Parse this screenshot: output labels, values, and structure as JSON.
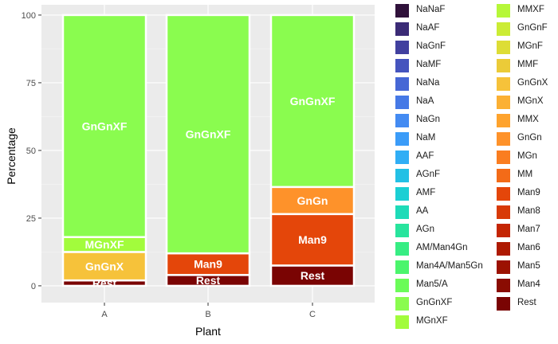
{
  "chart_data": {
    "type": "bar",
    "stacked": true,
    "xlabel": "Plant",
    "ylabel": "Percentage",
    "categories": [
      "A",
      "B",
      "C"
    ],
    "ylim": [
      0,
      100
    ],
    "yticks": [
      0,
      25,
      50,
      75,
      100
    ],
    "grid": true,
    "legend_position": "right",
    "series": [
      {
        "name": "Rest",
        "color": "#7a0403",
        "values": [
          2,
          4,
          7.5
        ],
        "labels": [
          "Rest",
          "Rest",
          "Rest"
        ]
      },
      {
        "name": "Man9",
        "color": "#e4460a",
        "values": [
          0,
          8,
          19
        ],
        "labels": [
          "",
          "Man9",
          "Man9"
        ]
      },
      {
        "name": "GnGn",
        "color": "#fe922a",
        "values": [
          0,
          0,
          10
        ],
        "labels": [
          "",
          "",
          "GnGn"
        ]
      },
      {
        "name": "GnGnX",
        "color": "#f6c23a",
        "values": [
          10.5,
          0,
          0
        ],
        "labels": [
          "GnGnX",
          "",
          ""
        ]
      },
      {
        "name": "MGnXF",
        "color": "#a2fc3c",
        "values": [
          5.5,
          0,
          0
        ],
        "labels": [
          "MGnXF",
          "",
          ""
        ]
      },
      {
        "name": "GnGnXF",
        "color": "#8afc4f",
        "values": [
          82,
          88,
          63.5
        ],
        "labels": [
          "GnGnXF",
          "GnGnXF",
          "GnGnXF"
        ]
      }
    ],
    "legend": [
      {
        "name": "NaNaF",
        "color": "#30123b"
      },
      {
        "name": "NaAF",
        "color": "#3b2b76"
      },
      {
        "name": "NaGnF",
        "color": "#41409f"
      },
      {
        "name": "NaMF",
        "color": "#4554be"
      },
      {
        "name": "NaNa",
        "color": "#4667d5"
      },
      {
        "name": "NaA",
        "color": "#4679e6"
      },
      {
        "name": "NaGn",
        "color": "#448bf2"
      },
      {
        "name": "NaM",
        "color": "#3b9cf8"
      },
      {
        "name": "AAF",
        "color": "#30aef5"
      },
      {
        "name": "AGnF",
        "color": "#23c0e5"
      },
      {
        "name": "AMF",
        "color": "#1bcfd4"
      },
      {
        "name": "AA",
        "color": "#1edbb8"
      },
      {
        "name": "AGn",
        "color": "#28e49d"
      },
      {
        "name": "AM/Man4Gn",
        "color": "#37ed83"
      },
      {
        "name": "Man4A/Man5Gn",
        "color": "#4bf56c"
      },
      {
        "name": "Man5/A",
        "color": "#6bfc58"
      },
      {
        "name": "GnGnXF",
        "color": "#8afc4f"
      },
      {
        "name": "MGnXF",
        "color": "#a2fc3c"
      },
      {
        "name": "MMXF",
        "color": "#b6f739"
      },
      {
        "name": "GnGnF",
        "color": "#cbec35"
      },
      {
        "name": "MGnF",
        "color": "#dddd36"
      },
      {
        "name": "MMF",
        "color": "#ebcb38"
      },
      {
        "name": "GnGnX",
        "color": "#f6c23a"
      },
      {
        "name": "MGnX",
        "color": "#fbb033"
      },
      {
        "name": "MMX",
        "color": "#fea32d"
      },
      {
        "name": "GnGn",
        "color": "#fe922a"
      },
      {
        "name": "MGn",
        "color": "#fa7d20"
      },
      {
        "name": "MM",
        "color": "#f36b18"
      },
      {
        "name": "Man9",
        "color": "#e4460a"
      },
      {
        "name": "Man8",
        "color": "#d83a07"
      },
      {
        "name": "Man7",
        "color": "#c42503"
      },
      {
        "name": "Man6",
        "color": "#ae1a02"
      },
      {
        "name": "Man5",
        "color": "#9c1201"
      },
      {
        "name": "Man4",
        "color": "#8a0c02"
      },
      {
        "name": "Rest",
        "color": "#7a0403"
      }
    ]
  }
}
